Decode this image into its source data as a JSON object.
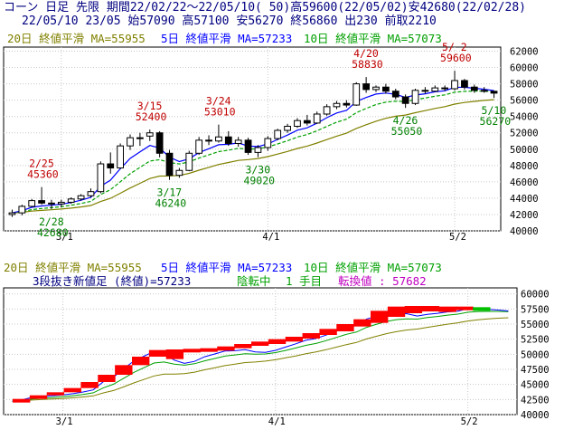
{
  "header": {
    "line1": "コーン 日足 先限 期間22/02/22～22/05/10( 50)高59600(22/05/02)安42680(22/02/28)",
    "line2": "22/05/10 23/05 始57090 高57100 安56270 終56860 出230 前取2210"
  },
  "legend_top": {
    "ma20": "20日 終値平滑 MA=55955",
    "ma5": "5日 終値平滑 MA=57233",
    "ma10": "10日 終値平滑 MA=57073"
  },
  "legend_bottom": {
    "ma20": "20日 終値平滑 MA=55955",
    "ma5": "5日 終値平滑 MA=57233",
    "ma10": "10日 終値平滑 MA=57073",
    "kagi_label": "3段抜き新値足 (終値)=57233",
    "kagi_state": "陰転中",
    "kagi_step": "1 手目",
    "kagi_reversal": "転換値 : 57682"
  },
  "colors": {
    "header_text": "#000080",
    "ma20": "#808000",
    "ma5": "#0000ff",
    "ma10": "#00a000",
    "high_label": "#c00000",
    "low_label": "#008000",
    "candle": "#000000",
    "kagi_up": "#ff0000",
    "kagi_down": "#00c000"
  },
  "chart_data": [
    {
      "type": "candlestick",
      "title": "コーン 日足 先限",
      "y_ticks": [
        40000,
        42000,
        44000,
        46000,
        48000,
        50000,
        52000,
        54000,
        56000,
        58000,
        60000,
        62000
      ],
      "ylim": [
        40000,
        62500
      ],
      "x_ticks": [
        {
          "i": 5,
          "label": "3/1"
        },
        {
          "i": 26,
          "label": "4/1"
        },
        {
          "i": 45,
          "label": "5/2"
        }
      ],
      "candles": [
        [
          42000,
          42600,
          41700,
          42200
        ],
        [
          42200,
          43200,
          41900,
          43000
        ],
        [
          43000,
          43900,
          42900,
          43700
        ],
        [
          43700,
          45360,
          43200,
          43400
        ],
        [
          43400,
          43800,
          42680,
          43300
        ],
        [
          43300,
          43800,
          42900,
          43500
        ],
        [
          43500,
          44100,
          43300,
          43900
        ],
        [
          43900,
          44500,
          43700,
          44300
        ],
        [
          44300,
          45200,
          44100,
          44800
        ],
        [
          44800,
          48500,
          44600,
          48200
        ],
        [
          48200,
          49600,
          47000,
          47700
        ],
        [
          47700,
          50700,
          47600,
          50400
        ],
        [
          50400,
          51800,
          49900,
          51400
        ],
        [
          51400,
          52000,
          50400,
          51300
        ],
        [
          51600,
          52400,
          51000,
          52000
        ],
        [
          52000,
          52200,
          49000,
          49500
        ],
        [
          49500,
          49900,
          46240,
          46800
        ],
        [
          46800,
          47700,
          46500,
          47400
        ],
        [
          47400,
          49800,
          47300,
          49500
        ],
        [
          49500,
          51500,
          49300,
          51100
        ],
        [
          51100,
          51700,
          50500,
          51000
        ],
        [
          51000,
          53010,
          50800,
          51500
        ],
        [
          51500,
          52200,
          50400,
          50700
        ],
        [
          50700,
          51500,
          50300,
          51100
        ],
        [
          51100,
          51400,
          49300,
          49600
        ],
        [
          49600,
          50500,
          49020,
          50200
        ],
        [
          50200,
          51600,
          49800,
          51300
        ],
        [
          51300,
          52500,
          51100,
          52300
        ],
        [
          52300,
          53100,
          52000,
          52800
        ],
        [
          52800,
          53800,
          52600,
          53500
        ],
        [
          53500,
          54200,
          52900,
          53200
        ],
        [
          53200,
          54600,
          53100,
          54300
        ],
        [
          54300,
          55500,
          54100,
          55200
        ],
        [
          55200,
          55900,
          54900,
          55600
        ],
        [
          55600,
          56000,
          55100,
          55400
        ],
        [
          55400,
          58200,
          55300,
          58000
        ],
        [
          58000,
          58830,
          56900,
          57300
        ],
        [
          57300,
          57800,
          57000,
          57600
        ],
        [
          57600,
          58000,
          56800,
          57100
        ],
        [
          57100,
          57400,
          56100,
          56400
        ],
        [
          56400,
          56700,
          55050,
          55600
        ],
        [
          55600,
          57400,
          55400,
          57200
        ],
        [
          57200,
          57600,
          56800,
          57100
        ],
        [
          57100,
          57800,
          57000,
          57500
        ],
        [
          57500,
          57800,
          57100,
          57400
        ],
        [
          57400,
          59600,
          57200,
          58400
        ],
        [
          58400,
          58600,
          57300,
          57600
        ],
        [
          57600,
          57900,
          56900,
          57200
        ],
        [
          57200,
          57600,
          56900,
          57090
        ],
        [
          57090,
          57100,
          56270,
          56860
        ]
      ],
      "annotations": [
        {
          "i": 3,
          "date": "2/25",
          "value": "45360",
          "kind": "high"
        },
        {
          "i": 4,
          "date": "2/28",
          "value": "42680",
          "kind": "low"
        },
        {
          "i": 14,
          "date": "3/15",
          "value": "52400",
          "kind": "high"
        },
        {
          "i": 16,
          "date": "3/17",
          "value": "46240",
          "kind": "low"
        },
        {
          "i": 21,
          "date": "3/24",
          "value": "53010",
          "kind": "high"
        },
        {
          "i": 25,
          "date": "3/30",
          "value": "49020",
          "kind": "low"
        },
        {
          "i": 36,
          "date": "4/20",
          "value": "58830",
          "kind": "high"
        },
        {
          "i": 40,
          "date": "4/26",
          "value": "55050",
          "kind": "low"
        },
        {
          "i": 45,
          "date": "5/ 2",
          "value": "59600",
          "kind": "high"
        },
        {
          "i": 49,
          "date": "5/10",
          "value": "56270",
          "kind": "low"
        }
      ],
      "series": [
        {
          "name": "20日 終値平滑",
          "last": 55955
        },
        {
          "name": "5日 終値平滑",
          "last": 57233
        },
        {
          "name": "10日 終値平滑",
          "last": 57073
        }
      ]
    },
    {
      "type": "bar",
      "title": "3段抜き新値足 (終値)",
      "y_ticks": [
        40000,
        42500,
        45000,
        47500,
        50000,
        52500,
        55000,
        57500,
        60000
      ],
      "ylim": [
        40000,
        61000
      ],
      "x_ticks": [
        {
          "i": 5,
          "label": "3/1"
        },
        {
          "i": 26,
          "label": "4/1"
        },
        {
          "i": 45,
          "label": "5/2"
        }
      ],
      "bricks": [
        {
          "from": 42000,
          "to": 42600,
          "dir": "up"
        },
        {
          "from": 42600,
          "to": 43200,
          "dir": "up"
        },
        {
          "from": 43200,
          "to": 43700,
          "dir": "up"
        },
        {
          "from": 43700,
          "to": 44400,
          "dir": "up"
        },
        {
          "from": 44400,
          "to": 45400,
          "dir": "up"
        },
        {
          "from": 45400,
          "to": 46600,
          "dir": "up"
        },
        {
          "from": 46600,
          "to": 48200,
          "dir": "up"
        },
        {
          "from": 48200,
          "to": 49600,
          "dir": "up"
        },
        {
          "from": 49600,
          "to": 50700,
          "dir": "up"
        },
        {
          "from": 49200,
          "to": 50800,
          "dir": "up"
        },
        {
          "from": 50300,
          "to": 50900,
          "dir": "up"
        },
        {
          "from": 50400,
          "to": 51000,
          "dir": "up"
        },
        {
          "from": 50600,
          "to": 51300,
          "dir": "up"
        },
        {
          "from": 51000,
          "to": 51700,
          "dir": "up"
        },
        {
          "from": 51400,
          "to": 52100,
          "dir": "up"
        },
        {
          "from": 51700,
          "to": 52500,
          "dir": "up"
        },
        {
          "from": 52100,
          "to": 52900,
          "dir": "up"
        },
        {
          "from": 52600,
          "to": 53500,
          "dir": "up"
        },
        {
          "from": 53200,
          "to": 54200,
          "dir": "up"
        },
        {
          "from": 53800,
          "to": 55000,
          "dir": "up"
        },
        {
          "from": 54600,
          "to": 55800,
          "dir": "up"
        },
        {
          "from": 55200,
          "to": 57200,
          "dir": "up"
        },
        {
          "from": 56200,
          "to": 57900,
          "dir": "up"
        },
        {
          "from": 56800,
          "to": 58000,
          "dir": "up"
        },
        {
          "from": 57100,
          "to": 58000,
          "dir": "up"
        },
        {
          "from": 57000,
          "to": 57900,
          "dir": "up"
        },
        {
          "from": 57300,
          "to": 57900,
          "dir": "up"
        },
        {
          "from": 57200,
          "to": 57800,
          "dir": "down"
        }
      ],
      "series": [
        {
          "name": "20日 終値平滑",
          "last": 55955
        },
        {
          "name": "5日 終値平滑",
          "last": 57233
        },
        {
          "name": "10日 終値平滑",
          "last": 57073
        }
      ]
    }
  ]
}
